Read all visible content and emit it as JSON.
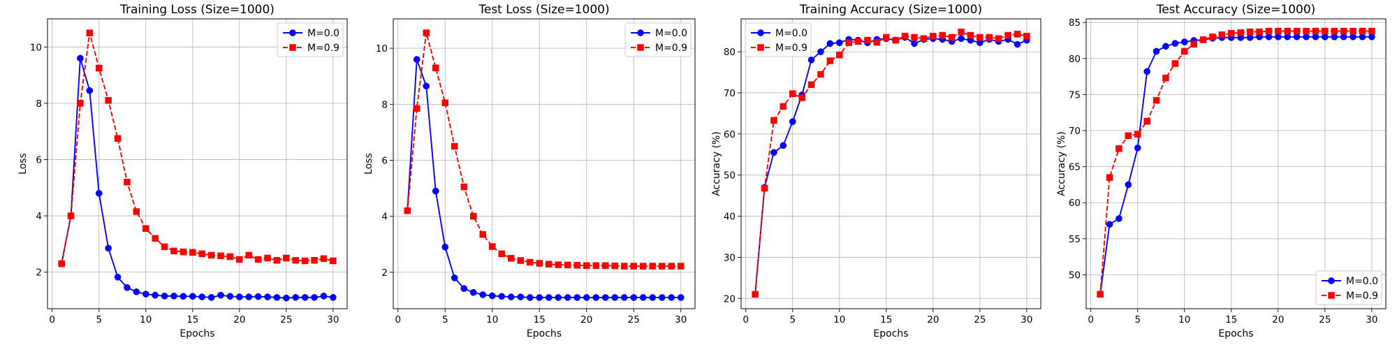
{
  "figure": {
    "background": "#ffffff"
  },
  "chart_data": [
    {
      "type": "line",
      "title": "Training Loss (Size=1000)",
      "xlabel": "Epochs",
      "ylabel": "Loss",
      "xlim": [
        -0.5,
        31.5
      ],
      "ylim": [
        0.7,
        11.0
      ],
      "xticks": [
        0,
        5,
        10,
        15,
        20,
        25,
        30
      ],
      "yticks": [
        2,
        4,
        6,
        8,
        10
      ],
      "grid": true,
      "legend": "top-right",
      "x": [
        1,
        2,
        3,
        4,
        5,
        6,
        7,
        8,
        9,
        10,
        11,
        12,
        13,
        14,
        15,
        16,
        17,
        18,
        19,
        20,
        21,
        22,
        23,
        24,
        25,
        26,
        27,
        28,
        29,
        30
      ],
      "series": [
        {
          "name": "M=0.0",
          "color": "#0000ff",
          "linestyle": "solid",
          "marker": "circle",
          "values": [
            2.3,
            4.0,
            9.6,
            8.45,
            4.8,
            2.85,
            1.82,
            1.45,
            1.3,
            1.22,
            1.18,
            1.15,
            1.15,
            1.14,
            1.14,
            1.12,
            1.1,
            1.18,
            1.14,
            1.12,
            1.12,
            1.13,
            1.12,
            1.1,
            1.08,
            1.1,
            1.1,
            1.1,
            1.15,
            1.1
          ]
        },
        {
          "name": "M=0.9",
          "color": "#ff0000",
          "linestyle": "dashed",
          "marker": "square",
          "values": [
            2.3,
            4.0,
            8.0,
            10.5,
            9.25,
            8.1,
            6.75,
            5.2,
            4.15,
            3.55,
            3.2,
            2.9,
            2.75,
            2.72,
            2.7,
            2.65,
            2.6,
            2.58,
            2.55,
            2.45,
            2.6,
            2.45,
            2.5,
            2.42,
            2.5,
            2.42,
            2.4,
            2.42,
            2.48,
            2.4
          ]
        }
      ]
    },
    {
      "type": "line",
      "title": "Test Loss (Size=1000)",
      "xlabel": "Epochs",
      "ylabel": "Loss",
      "xlim": [
        -0.5,
        31.5
      ],
      "ylim": [
        0.7,
        11.05
      ],
      "xticks": [
        0,
        5,
        10,
        15,
        20,
        25,
        30
      ],
      "yticks": [
        2,
        4,
        6,
        8,
        10
      ],
      "grid": true,
      "legend": "top-right",
      "x": [
        1,
        2,
        3,
        4,
        5,
        6,
        7,
        8,
        9,
        10,
        11,
        12,
        13,
        14,
        15,
        16,
        17,
        18,
        19,
        20,
        21,
        22,
        23,
        24,
        25,
        26,
        27,
        28,
        29,
        30
      ],
      "series": [
        {
          "name": "M=0.0",
          "color": "#0000ff",
          "linestyle": "solid",
          "marker": "circle",
          "values": [
            4.2,
            9.6,
            8.65,
            4.9,
            2.9,
            1.8,
            1.42,
            1.28,
            1.2,
            1.16,
            1.14,
            1.12,
            1.12,
            1.1,
            1.1,
            1.1,
            1.1,
            1.1,
            1.1,
            1.1,
            1.1,
            1.1,
            1.1,
            1.1,
            1.1,
            1.1,
            1.1,
            1.1,
            1.1,
            1.1
          ]
        },
        {
          "name": "M=0.9",
          "color": "#ff0000",
          "linestyle": "dashed",
          "marker": "square",
          "values": [
            4.2,
            7.85,
            10.55,
            9.3,
            8.05,
            6.5,
            5.05,
            4.0,
            3.35,
            2.92,
            2.66,
            2.5,
            2.42,
            2.36,
            2.32,
            2.29,
            2.27,
            2.26,
            2.25,
            2.24,
            2.24,
            2.24,
            2.23,
            2.22,
            2.22,
            2.22,
            2.22,
            2.22,
            2.22,
            2.22
          ]
        }
      ]
    },
    {
      "type": "line",
      "title": "Training Accuracy (Size=1000)",
      "xlabel": "Epochs",
      "ylabel": "Accuracy (%)",
      "xlim": [
        -0.5,
        31.5
      ],
      "ylim": [
        17.5,
        88
      ],
      "xticks": [
        0,
        5,
        10,
        15,
        20,
        25,
        30
      ],
      "yticks": [
        20,
        30,
        40,
        50,
        60,
        70,
        80
      ],
      "grid": true,
      "legend": "top-left",
      "x": [
        1,
        2,
        3,
        4,
        5,
        6,
        7,
        8,
        9,
        10,
        11,
        12,
        13,
        14,
        15,
        16,
        17,
        18,
        19,
        20,
        21,
        22,
        23,
        24,
        25,
        26,
        27,
        28,
        29,
        30
      ],
      "series": [
        {
          "name": "M=0.0",
          "color": "#0000ff",
          "linestyle": "solid",
          "marker": "circle",
          "values": [
            21.0,
            47.0,
            55.5,
            57.2,
            63.0,
            69.5,
            78.0,
            80.0,
            82.0,
            82.2,
            83.0,
            82.8,
            82.2,
            83.0,
            83.2,
            82.8,
            83.5,
            82.0,
            83.0,
            83.2,
            83.0,
            82.5,
            83.2,
            82.8,
            82.2,
            83.0,
            82.5,
            83.0,
            81.8,
            82.8
          ]
        },
        {
          "name": "M=0.9",
          "color": "#ff0000",
          "linestyle": "dashed",
          "marker": "square",
          "values": [
            21.0,
            46.8,
            63.3,
            66.7,
            69.8,
            68.8,
            72.0,
            74.5,
            77.8,
            79.2,
            82.2,
            82.5,
            82.8,
            82.3,
            83.5,
            82.8,
            83.8,
            83.5,
            83.2,
            83.8,
            84.0,
            83.5,
            84.8,
            84.0,
            83.5,
            83.5,
            83.2,
            84.0,
            84.3,
            83.8
          ]
        }
      ]
    },
    {
      "type": "line",
      "title": "Test Accuracy (Size=1000)",
      "xlabel": "Epochs",
      "ylabel": "Accuracy (%)",
      "xlim": [
        -0.5,
        31.5
      ],
      "ylim": [
        45.3,
        85.5
      ],
      "xticks": [
        0,
        5,
        10,
        15,
        20,
        25,
        30
      ],
      "yticks": [
        50,
        55,
        60,
        65,
        70,
        75,
        80,
        85
      ],
      "grid": true,
      "legend": "bottom-right",
      "x": [
        1,
        2,
        3,
        4,
        5,
        6,
        7,
        8,
        9,
        10,
        11,
        12,
        13,
        14,
        15,
        16,
        17,
        18,
        19,
        20,
        21,
        22,
        23,
        24,
        25,
        26,
        27,
        28,
        29,
        30
      ],
      "series": [
        {
          "name": "M=0.0",
          "color": "#0000ff",
          "linestyle": "solid",
          "marker": "circle",
          "values": [
            47.3,
            57.0,
            57.8,
            62.5,
            67.6,
            78.2,
            81.0,
            81.7,
            82.1,
            82.3,
            82.5,
            82.6,
            82.8,
            82.9,
            82.9,
            82.9,
            82.9,
            83.0,
            83.0,
            83.0,
            83.0,
            83.0,
            83.0,
            83.0,
            83.0,
            83.0,
            83.0,
            83.0,
            83.0,
            83.0
          ]
        },
        {
          "name": "M=0.9",
          "color": "#ff0000",
          "linestyle": "dashed",
          "marker": "square",
          "values": [
            47.3,
            63.5,
            67.5,
            69.3,
            69.5,
            71.3,
            74.2,
            77.3,
            79.3,
            81.0,
            82.0,
            82.6,
            83.0,
            83.3,
            83.5,
            83.6,
            83.7,
            83.7,
            83.8,
            83.8,
            83.8,
            83.8,
            83.8,
            83.8,
            83.8,
            83.8,
            83.8,
            83.8,
            83.8,
            83.8
          ]
        }
      ]
    }
  ]
}
